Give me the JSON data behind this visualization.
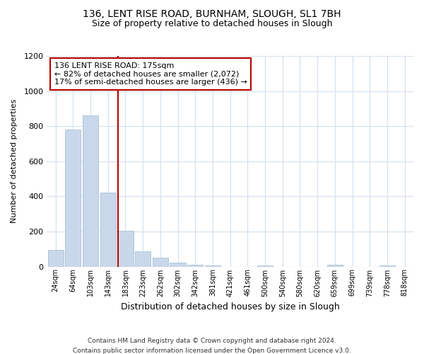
{
  "title1": "136, LENT RISE ROAD, BURNHAM, SLOUGH, SL1 7BH",
  "title2": "Size of property relative to detached houses in Slough",
  "xlabel": "Distribution of detached houses by size in Slough",
  "ylabel": "Number of detached properties",
  "bar_labels": [
    "24sqm",
    "64sqm",
    "103sqm",
    "143sqm",
    "183sqm",
    "223sqm",
    "262sqm",
    "302sqm",
    "342sqm",
    "381sqm",
    "421sqm",
    "461sqm",
    "500sqm",
    "540sqm",
    "580sqm",
    "620sqm",
    "659sqm",
    "699sqm",
    "739sqm",
    "778sqm",
    "818sqm"
  ],
  "bar_values": [
    95,
    780,
    860,
    420,
    205,
    85,
    52,
    22,
    10,
    8,
    0,
    0,
    7,
    0,
    0,
    0,
    12,
    0,
    0,
    7,
    0
  ],
  "bar_color": "#c8d8ea",
  "bar_edgecolor": "#a8c0d4",
  "vline_color": "#bb0000",
  "annotation_title": "136 LENT RISE ROAD: 175sqm",
  "annotation_line2": "← 82% of detached houses are smaller (2,072)",
  "annotation_line3": "17% of semi-detached houses are larger (436) →",
  "annotation_box_edgecolor": "#bb0000",
  "ylim": [
    0,
    1200
  ],
  "yticks": [
    0,
    200,
    400,
    600,
    800,
    1000,
    1200
  ],
  "footer1": "Contains HM Land Registry data © Crown copyright and database right 2024.",
  "footer2": "Contains public sector information licensed under the Open Government Licence v3.0.",
  "bg_color": "#ffffff",
  "grid_color": "#d8e4f0"
}
